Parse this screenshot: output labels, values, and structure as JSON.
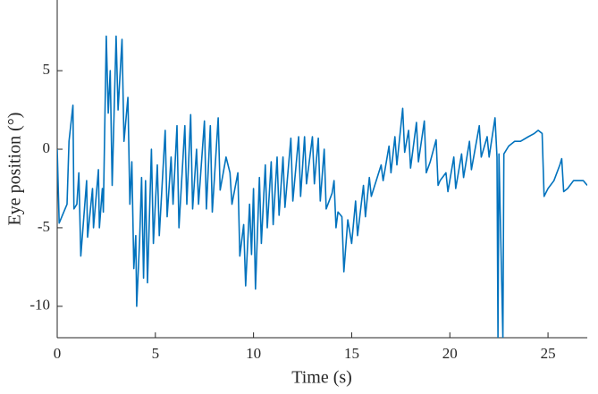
{
  "chart_data": {
    "type": "line",
    "x_label": "Time (s)",
    "y_label": "Eye position (°)",
    "x": [
      0,
      0.1,
      0.5,
      0.6,
      0.8,
      0.85,
      1.0,
      1.1,
      1.2,
      1.5,
      1.55,
      1.8,
      1.85,
      2.1,
      2.15,
      2.3,
      2.35,
      2.5,
      2.6,
      2.7,
      2.8,
      3.0,
      3.1,
      3.3,
      3.4,
      3.6,
      3.7,
      3.8,
      3.9,
      4.0,
      4.05,
      4.2,
      4.3,
      4.4,
      4.5,
      4.6,
      4.8,
      4.9,
      5.1,
      5.2,
      5.5,
      5.6,
      5.8,
      5.9,
      6.1,
      6.2,
      6.5,
      6.6,
      6.8,
      6.9,
      7.1,
      7.2,
      7.5,
      7.6,
      7.8,
      7.9,
      8.2,
      8.3,
      8.6,
      8.8,
      8.9,
      9.2,
      9.3,
      9.5,
      9.6,
      9.8,
      9.9,
      10.0,
      10.1,
      10.3,
      10.4,
      10.6,
      10.7,
      10.9,
      11.0,
      11.2,
      11.3,
      11.5,
      11.6,
      11.9,
      12.0,
      12.3,
      12.4,
      12.6,
      12.7,
      13.0,
      13.1,
      13.3,
      13.4,
      13.6,
      13.7,
      14.0,
      14.1,
      14.2,
      14.3,
      14.5,
      14.6,
      14.8,
      15.0,
      15.2,
      15.3,
      15.6,
      15.7,
      15.9,
      16.0,
      16.5,
      16.6,
      16.9,
      17.0,
      17.2,
      17.3,
      17.6,
      17.7,
      17.9,
      18.0,
      18.3,
      18.4,
      18.7,
      18.8,
      19.0,
      19.3,
      19.4,
      19.5,
      19.8,
      19.9,
      20.2,
      20.3,
      20.6,
      20.7,
      21.0,
      21.1,
      21.5,
      21.6,
      21.9,
      22.0,
      22.3,
      22.4,
      22.45,
      22.5,
      22.7,
      22.75,
      23.0,
      23.3,
      23.6,
      24.0,
      24.3,
      24.5,
      24.7,
      24.8,
      25.0,
      25.3,
      25.6,
      25.7,
      25.8,
      26.0,
      26.3,
      26.8,
      27
    ],
    "series": [
      {
        "color": "#0072bd",
        "values": [
          0,
          -4.7,
          -3.5,
          0.5,
          2.8,
          -3.8,
          -3.5,
          -1.5,
          -6.8,
          -2,
          -5.6,
          -2.5,
          -5,
          -1.3,
          -5,
          -2.5,
          -4,
          7.2,
          2.3,
          5,
          -2.3,
          7.2,
          2.5,
          7,
          0.5,
          3.3,
          -3.5,
          -0.8,
          -7.6,
          -5.5,
          -10,
          -5.8,
          -1.8,
          -8.2,
          -2,
          -8.5,
          0,
          -6,
          -1,
          -5.5,
          1.2,
          -4.3,
          -0.5,
          -3.5,
          1.5,
          -5,
          1.5,
          -3.5,
          2.2,
          -3.8,
          0,
          -3.5,
          1.8,
          -3.8,
          1.5,
          -4,
          2,
          -2.6,
          -0.5,
          -1.5,
          -3.5,
          -1.5,
          -6.8,
          -4.8,
          -8.7,
          -3.5,
          -6.7,
          -2.5,
          -8.9,
          -1.8,
          -6,
          -1,
          -5,
          -0.8,
          -4.8,
          -0.5,
          -4.2,
          -0.5,
          -3.7,
          0.7,
          -3.3,
          0.8,
          -3,
          0.8,
          -2.2,
          0.8,
          -2.2,
          0.7,
          -3.3,
          0,
          -3.8,
          -2.8,
          -2,
          -5,
          -4,
          -4.3,
          -7.8,
          -4.5,
          -6,
          -3.3,
          -5.5,
          -2.3,
          -4.3,
          -1.8,
          -3,
          -1,
          -2,
          0.2,
          -1.5,
          0.8,
          -1,
          2.6,
          -0.2,
          1.2,
          -1.2,
          1.7,
          -0.8,
          1.8,
          -1.5,
          -0.8,
          0.6,
          -2.3,
          -2,
          -1.5,
          -2.7,
          -0.5,
          -2.5,
          -0.3,
          -1.8,
          0.5,
          -1.3,
          1.5,
          -0.5,
          0.8,
          -0.5,
          2,
          -0.5,
          -12,
          -0.3,
          -12,
          -0.3,
          0.2,
          0.5,
          0.5,
          0.8,
          1,
          1.2,
          1,
          -3,
          -2.5,
          -2,
          -1,
          -0.6,
          -2.7,
          -2.5,
          -2,
          -2,
          -2.3
        ]
      }
    ],
    "xlim": [
      0,
      27
    ],
    "ylim": [
      -12,
      9.5
    ],
    "xticks": [
      0,
      5,
      10,
      15,
      20,
      25
    ],
    "yticks": [
      -10,
      -5,
      0,
      5
    ]
  }
}
